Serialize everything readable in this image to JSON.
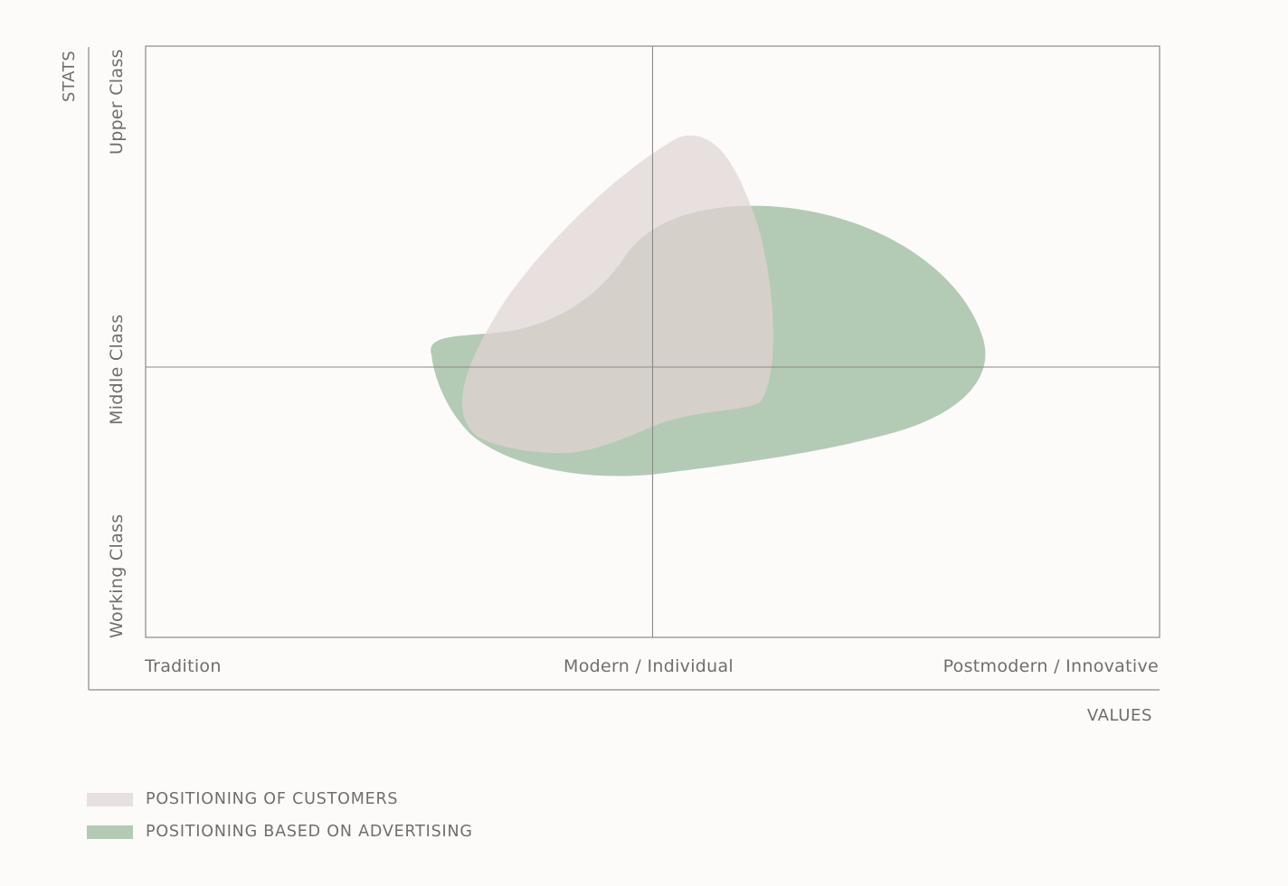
{
  "axes": {
    "y_title": "STATS",
    "x_title": "VALUES",
    "y_levels": [
      "Upper Class",
      "Middle Class",
      "Working Class"
    ],
    "x_levels": [
      "Tradition",
      "Modern  / Individual",
      "Postmodern / Innovative"
    ]
  },
  "legend": [
    {
      "label": "POSITIONING OF CUSTOMERS",
      "color": "#e8e0df"
    },
    {
      "label": "POSITIONING BASED ON ADVERTISING",
      "color": "#b3cbb5"
    }
  ],
  "colors": {
    "axis_line": "#8a8a84",
    "text": "#6f6f68",
    "customers": "#e8e0df",
    "advertising": "#b3cbb5",
    "overlap": "#d6d0cb"
  }
}
